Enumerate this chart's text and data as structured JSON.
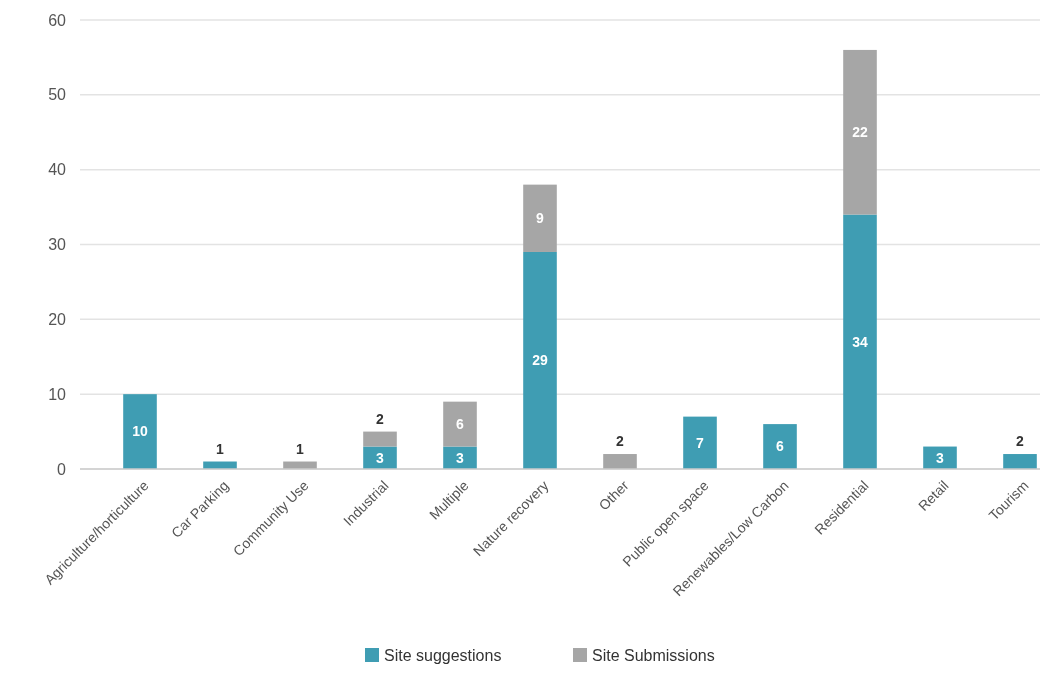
{
  "chart_data": {
    "type": "bar",
    "stacked": true,
    "categories": [
      "Agriculture/horticulture",
      "Car Parking",
      "Community Use",
      "Industrial",
      "Multiple",
      "Nature recovery",
      "Other",
      "Public open space",
      "Renewables/Low Carbon",
      "Residential",
      "Retail",
      "Tourism"
    ],
    "series": [
      {
        "name": "Site suggestions",
        "color": "#3f9db3",
        "values": [
          10,
          1,
          null,
          3,
          3,
          29,
          null,
          7,
          6,
          34,
          3,
          2
        ]
      },
      {
        "name": "Site Submissions",
        "color": "#a6a6a6",
        "values": [
          null,
          null,
          1,
          2,
          6,
          9,
          2,
          null,
          null,
          22,
          null,
          null
        ]
      }
    ],
    "ylim": [
      0,
      60
    ],
    "yticks": [
      0,
      10,
      20,
      30,
      40,
      50,
      60
    ],
    "grid": "y",
    "legend": "bottom",
    "data_labels": true
  }
}
